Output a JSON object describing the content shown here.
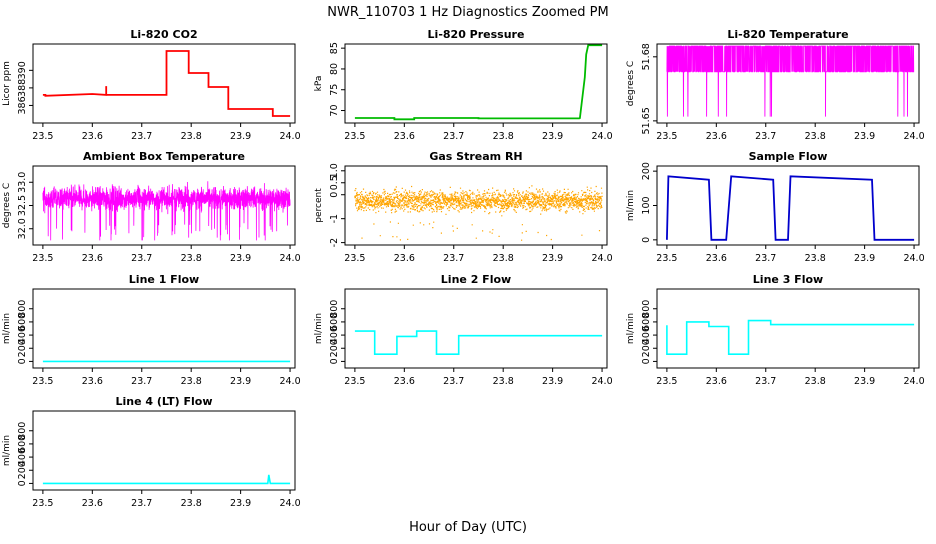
{
  "page": {
    "title": "NWR_110703  1 Hz Diagnostics Zoomed PM",
    "xlabel": "Hour of Day (UTC)"
  },
  "chart_data": [
    {
      "type": "line",
      "title": "Li-820 CO2",
      "ylabel": "Licor ppm",
      "xlim": [
        23.48,
        24.01
      ],
      "ylim": [
        384,
        393
      ],
      "xticks": [
        23.5,
        23.6,
        23.7,
        23.8,
        23.9,
        24.0
      ],
      "xtick_labels": [
        "23.5",
        "23.6",
        "23.7",
        "23.8",
        "23.9",
        "24.0"
      ],
      "yticks": [
        386,
        388,
        390
      ],
      "ytick_labels": [
        "386",
        "388",
        "390"
      ],
      "color": "#ff0000",
      "series": [
        {
          "x": [
            23.5,
            23.505,
            23.505,
            23.6,
            23.628,
            23.628,
            23.628,
            23.69,
            23.75,
            23.75,
            23.795,
            23.795,
            23.835,
            23.835,
            23.875,
            23.875,
            23.965,
            23.965,
            24.0
          ],
          "y": [
            387.2,
            387.2,
            387.1,
            387.3,
            387.2,
            388.2,
            387.2,
            387.2,
            387.2,
            392.2,
            392.2,
            389.7,
            389.7,
            388.1,
            388.1,
            385.6,
            385.6,
            384.8,
            384.8
          ]
        }
      ]
    },
    {
      "type": "line",
      "title": "Li-820 Pressure",
      "ylabel": "kPa",
      "xlim": [
        23.48,
        24.01
      ],
      "ylim": [
        67,
        86
      ],
      "xticks": [
        23.5,
        23.6,
        23.7,
        23.8,
        23.9,
        24.0
      ],
      "xtick_labels": [
        "23.5",
        "23.6",
        "23.7",
        "23.8",
        "23.9",
        "24.0"
      ],
      "yticks": [
        70,
        75,
        80,
        85
      ],
      "ytick_labels": [
        "70",
        "75",
        "80",
        "85"
      ],
      "color": "#00bb00",
      "series": [
        {
          "x": [
            23.5,
            23.58,
            23.58,
            23.62,
            23.62,
            23.75,
            23.75,
            23.955,
            23.955,
            23.965,
            23.968,
            23.972,
            24.0
          ],
          "y": [
            68.2,
            68.2,
            67.9,
            67.9,
            68.2,
            68.2,
            68.1,
            68.1,
            68.0,
            78.0,
            83.5,
            85.7,
            85.7
          ]
        }
      ]
    },
    {
      "type": "line",
      "title": "Li-820 Temperature",
      "ylabel": "degrees C",
      "xlim": [
        23.48,
        24.01
      ],
      "ylim": [
        51.649,
        51.686
      ],
      "xticks": [
        23.5,
        23.6,
        23.7,
        23.8,
        23.9,
        24.0
      ],
      "xtick_labels": [
        "23.5",
        "23.6",
        "23.7",
        "23.8",
        "23.9",
        "24.0"
      ],
      "yticks": [
        51.65,
        51.68
      ],
      "ytick_labels": [
        "51.65",
        "51.68"
      ],
      "color": "#ff00ff",
      "series": [
        {
          "noise": "binary",
          "levels": [
            51.685,
            51.673,
            51.652
          ],
          "x": [
            23.5,
            24.0
          ]
        }
      ]
    },
    {
      "type": "line",
      "title": "Ambient Box Temperature",
      "ylabel": "degrees C",
      "xlim": [
        23.48,
        24.01
      ],
      "ylim": [
        31.65,
        33.35
      ],
      "xticks": [
        23.5,
        23.6,
        23.7,
        23.8,
        23.9,
        24.0
      ],
      "xtick_labels": [
        "23.5",
        "23.6",
        "23.7",
        "23.8",
        "23.9",
        "24.0"
      ],
      "yticks": [
        32.0,
        32.5,
        33.0
      ],
      "ytick_labels": [
        "32.0",
        "32.5",
        "33.0"
      ],
      "color": "#ff00ff",
      "series": [
        {
          "noise": "band",
          "center": 32.65,
          "spread": 0.35,
          "min": 31.75,
          "max": 33.3,
          "x": [
            23.5,
            24.0
          ]
        }
      ]
    },
    {
      "type": "scatter",
      "title": "Gas Stream RH",
      "ylabel": "percent",
      "xlim": [
        23.48,
        24.01
      ],
      "ylim": [
        -2.1,
        1.2
      ],
      "xticks": [
        23.5,
        23.6,
        23.7,
        23.8,
        23.9,
        24.0
      ],
      "xtick_labels": [
        "23.5",
        "23.6",
        "23.7",
        "23.8",
        "23.9",
        "24.0"
      ],
      "yticks": [
        -2,
        -1,
        0,
        0.5,
        1.0
      ],
      "ytick_labels": [
        "-2",
        "-1",
        "0",
        "0.5",
        "1.0"
      ],
      "color": "#ffa500",
      "series": [
        {
          "noise": "points",
          "center": -0.25,
          "spread": 0.55,
          "min": -1.9,
          "max": 1.0,
          "x": [
            23.5,
            24.0
          ]
        }
      ]
    },
    {
      "type": "line",
      "title": "Sample Flow",
      "ylabel": "ml/min",
      "xlim": [
        23.48,
        24.01
      ],
      "ylim": [
        -15,
        215
      ],
      "xticks": [
        23.5,
        23.6,
        23.7,
        23.8,
        23.9,
        24.0
      ],
      "xtick_labels": [
        "23.5",
        "23.6",
        "23.7",
        "23.8",
        "23.9",
        "24.0"
      ],
      "yticks": [
        0,
        100,
        200
      ],
      "ytick_labels": [
        "0",
        "100",
        "200"
      ],
      "color": "#0000cc",
      "series": [
        {
          "x": [
            23.5,
            23.503,
            23.585,
            23.59,
            23.62,
            23.63,
            23.715,
            23.72,
            23.745,
            23.75,
            23.915,
            23.92,
            24.0
          ],
          "y": [
            0,
            185,
            175,
            0,
            0,
            185,
            175,
            0,
            0,
            185,
            175,
            0,
            0
          ]
        }
      ]
    },
    {
      "type": "line",
      "title": "Line 1 Flow",
      "ylabel": "ml/min",
      "xlim": [
        23.48,
        24.01
      ],
      "ylim": [
        -100,
        1100
      ],
      "xticks": [
        23.5,
        23.6,
        23.7,
        23.8,
        23.9,
        24.0
      ],
      "xtick_labels": [
        "23.5",
        "23.6",
        "23.7",
        "23.8",
        "23.9",
        "24.0"
      ],
      "yticks": [
        0,
        200,
        400,
        600,
        800
      ],
      "ytick_labels": [
        "0",
        "200",
        "400",
        "600",
        "800"
      ],
      "color": "#00ffff",
      "series": [
        {
          "x": [
            23.5,
            24.0
          ],
          "y": [
            0,
            0
          ]
        }
      ]
    },
    {
      "type": "line",
      "title": "Line 2 Flow",
      "ylabel": "ml/min",
      "xlim": [
        23.48,
        24.01
      ],
      "ylim": [
        -100,
        1100
      ],
      "xticks": [
        23.5,
        23.6,
        23.7,
        23.8,
        23.9,
        24.0
      ],
      "xtick_labels": [
        "23.5",
        "23.6",
        "23.7",
        "23.8",
        "23.9",
        "24.0"
      ],
      "yticks": [
        0,
        200,
        400,
        600,
        800
      ],
      "ytick_labels": [
        "0",
        "200",
        "400",
        "600",
        "800"
      ],
      "color": "#00ffff",
      "series": [
        {
          "x": [
            23.5,
            23.54,
            23.54,
            23.585,
            23.585,
            23.625,
            23.625,
            23.665,
            23.665,
            23.71,
            23.71,
            24.0
          ],
          "y": [
            460,
            460,
            110,
            110,
            380,
            380,
            460,
            460,
            110,
            110,
            390,
            390
          ]
        }
      ]
    },
    {
      "type": "line",
      "title": "Line 3 Flow",
      "ylabel": "ml/min",
      "xlim": [
        23.48,
        24.01
      ],
      "ylim": [
        -100,
        1100
      ],
      "xticks": [
        23.5,
        23.6,
        23.7,
        23.8,
        23.9,
        24.0
      ],
      "xtick_labels": [
        "23.5",
        "23.6",
        "23.7",
        "23.8",
        "23.9",
        "24.0"
      ],
      "yticks": [
        0,
        200,
        400,
        600,
        800
      ],
      "ytick_labels": [
        "0",
        "200",
        "400",
        "600",
        "800"
      ],
      "color": "#00ffff",
      "series": [
        {
          "x": [
            23.5,
            23.5,
            23.54,
            23.54,
            23.585,
            23.585,
            23.625,
            23.625,
            23.665,
            23.665,
            23.71,
            23.71,
            24.0
          ],
          "y": [
            550,
            110,
            110,
            600,
            600,
            530,
            530,
            110,
            110,
            620,
            620,
            560,
            560
          ]
        }
      ]
    },
    {
      "type": "line",
      "title": "Line 4 (LT) Flow",
      "ylabel": "ml/min",
      "xlim": [
        23.48,
        24.01
      ],
      "ylim": [
        -100,
        1100
      ],
      "xticks": [
        23.5,
        23.6,
        23.7,
        23.8,
        23.9,
        24.0
      ],
      "xtick_labels": [
        "23.5",
        "23.6",
        "23.7",
        "23.8",
        "23.9",
        "24.0"
      ],
      "yticks": [
        0,
        200,
        400,
        600,
        800
      ],
      "ytick_labels": [
        "0",
        "200",
        "400",
        "600",
        "800"
      ],
      "color": "#00ffff",
      "series": [
        {
          "x": [
            23.5,
            23.955,
            23.957,
            23.96,
            24.0
          ],
          "y": [
            0,
            0,
            130,
            0,
            0
          ]
        }
      ]
    }
  ]
}
